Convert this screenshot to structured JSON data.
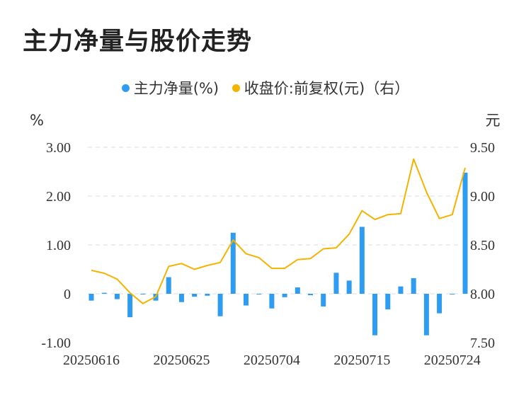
{
  "title": "主力净量与股价走势",
  "legend": {
    "series1": "主力净量(%)",
    "series2": "收盘价:前复权(元)（右）"
  },
  "colors": {
    "bar": "#2e9cf0",
    "line": "#f5b300",
    "grid": "#dddddd"
  },
  "chart_data": {
    "type": "bar+line",
    "title": "主力净量与股价走势",
    "left_unit": "%",
    "right_unit": "元",
    "ylim_left": [
      -1.0,
      3.0
    ],
    "ylim_right": [
      7.5,
      9.5
    ],
    "left_ticks": [
      "3.00",
      "2.00",
      "1.00",
      "0",
      "-1.00"
    ],
    "right_ticks": [
      "9.50",
      "9.00",
      "8.50",
      "8.00",
      "7.50"
    ],
    "x_tick_labels": [
      "20250616",
      "20250625",
      "20250704",
      "20250715",
      "20250724"
    ],
    "x_tick_indices": [
      0,
      7,
      14,
      21,
      28
    ],
    "grid": true,
    "legend_position": "top",
    "series": [
      {
        "name": "主力净量(%)",
        "type": "bar",
        "axis": "left",
        "values": [
          -0.14,
          0.02,
          -0.11,
          -0.48,
          0.0,
          -0.14,
          0.34,
          -0.17,
          -0.06,
          -0.04,
          -0.46,
          1.25,
          -0.24,
          0.0,
          -0.3,
          -0.07,
          0.13,
          -0.03,
          -0.26,
          0.43,
          0.27,
          1.37,
          -0.85,
          -0.32,
          0.15,
          0.32,
          -0.85,
          -0.4,
          -0.01,
          2.48
        ]
      },
      {
        "name": "收盘价:前复权(元)（右）",
        "type": "line",
        "axis": "right",
        "values": [
          8.24,
          8.21,
          8.15,
          8.01,
          7.9,
          7.97,
          8.28,
          8.31,
          8.25,
          8.29,
          8.32,
          8.55,
          8.41,
          8.37,
          8.26,
          8.26,
          8.35,
          8.36,
          8.46,
          8.47,
          8.61,
          8.85,
          8.76,
          8.81,
          8.82,
          9.38,
          9.04,
          8.77,
          8.81,
          9.29
        ]
      }
    ]
  }
}
